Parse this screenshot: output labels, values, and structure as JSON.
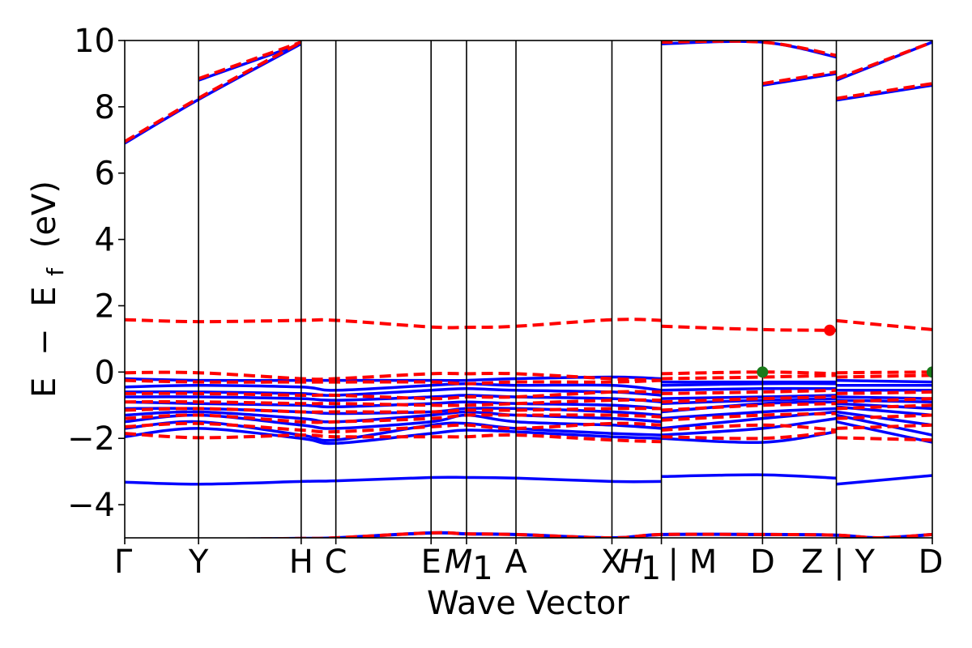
{
  "chart_data": {
    "type": "line",
    "title": "",
    "xlabel": "Wave Vector",
    "ylabel": "E − E_f (eV)",
    "ylabel_parts": {
      "a": "E",
      "minus": "−",
      "b": "E",
      "sub": "f",
      "unit": "(eV)"
    },
    "ylim": [
      -5,
      10
    ],
    "yticks": [
      -4,
      -2,
      0,
      2,
      4,
      6,
      8,
      10
    ],
    "ytick_labels": [
      "−4",
      "−2",
      "0",
      "2",
      "4",
      "6",
      "8",
      "10"
    ],
    "xlim": [
      0,
      10.94
    ],
    "kpoints": [
      {
        "label": "Γ",
        "x": 0.0
      },
      {
        "label": "Y",
        "x": 1.0
      },
      {
        "label": "H",
        "x": 2.39
      },
      {
        "label": "C",
        "x": 2.86
      },
      {
        "label": "E",
        "x": 4.15
      },
      {
        "label": "M",
        "sub": "1",
        "x": 4.63
      },
      {
        "label": "A",
        "x": 5.3
      },
      {
        "label": "X",
        "x": 6.6
      },
      {
        "label": "H",
        "sub": "1",
        "prefix": "",
        "x": 7.27,
        "display": "H₁ | M"
      },
      {
        "label": "D",
        "x": 8.64
      },
      {
        "label": "Z | Y",
        "x": 9.64
      },
      {
        "label": "D",
        "x": 10.94
      }
    ],
    "tick_label_text": [
      "Γ",
      "Y",
      "H",
      "C",
      "E",
      "M",
      "1",
      "A",
      "X",
      "H",
      "1",
      "| M",
      "D",
      "Z | Y",
      "D"
    ],
    "segments": [
      [
        0,
        6.6
      ],
      [
        6.6,
        7.27
      ],
      [
        7.27,
        9.64
      ],
      [
        9.64,
        10.94
      ]
    ],
    "series": [
      {
        "style": "solid",
        "color": "#0000ff",
        "bands": [
          [
            -3.32,
            -3.38,
            -3.3,
            -3.28,
            -3.18,
            -3.18,
            -3.2,
            -3.3,
            -3.3,
            -3.15,
            -3.1,
            -3.2,
            -3.38,
            -3.12
          ],
          [
            -1.95,
            -1.7,
            -2.0,
            -2.15,
            -1.85,
            -1.75,
            -1.8,
            -1.95,
            -2.0,
            -2.0,
            -2.12,
            -1.8,
            -1.5,
            -2.12
          ],
          [
            -1.7,
            -1.5,
            -1.9,
            -2.05,
            -1.6,
            -1.55,
            -1.7,
            -1.85,
            -1.9,
            -1.9,
            -1.7,
            -1.4,
            -1.3,
            -1.9
          ],
          [
            -1.5,
            -1.3,
            -1.6,
            -1.7,
            -1.5,
            -1.3,
            -1.5,
            -1.6,
            -1.7,
            -1.7,
            -1.4,
            -1.2,
            -1.2,
            -1.6
          ],
          [
            -1.3,
            -1.2,
            -1.4,
            -1.5,
            -1.3,
            -1.2,
            -1.3,
            -1.4,
            -1.5,
            -1.4,
            -1.2,
            -1.1,
            -1.05,
            -1.3
          ],
          [
            -1.1,
            -1.1,
            -1.2,
            -1.25,
            -1.2,
            -1.1,
            -1.1,
            -1.2,
            -1.3,
            -1.2,
            -0.95,
            -0.9,
            -0.95,
            -1.1
          ],
          [
            -0.9,
            -0.95,
            -1.0,
            -1.05,
            -0.95,
            -0.9,
            -0.95,
            -1.0,
            -1.1,
            -0.95,
            -0.85,
            -0.8,
            -0.85,
            -0.9
          ],
          [
            -0.75,
            -0.75,
            -0.8,
            -0.85,
            -0.75,
            -0.7,
            -0.75,
            -0.8,
            -0.9,
            -0.8,
            -0.75,
            -0.7,
            -0.75,
            -0.8
          ],
          [
            -0.6,
            -0.6,
            -0.65,
            -0.7,
            -0.55,
            -0.5,
            -0.55,
            -0.6,
            -0.7,
            -0.55,
            -0.5,
            -0.5,
            -0.55,
            -0.55
          ],
          [
            -0.45,
            -0.4,
            -0.45,
            -0.55,
            -0.4,
            -0.35,
            -0.4,
            -0.4,
            -0.55,
            -0.4,
            -0.35,
            -0.35,
            -0.4,
            -0.4
          ],
          [
            -0.2,
            -0.25,
            -0.25,
            -0.25,
            -0.25,
            -0.25,
            -0.2,
            -0.15,
            -0.2,
            -0.3,
            -0.3,
            -0.3,
            -0.25,
            -0.3
          ],
          [
            6.9,
            8.22,
            9.9,
            null,
            null,
            null,
            null,
            null,
            null,
            null,
            8.65,
            9.0,
            8.2,
            8.65
          ],
          [
            null,
            8.8,
            9.9,
            null,
            null,
            null,
            null,
            null,
            null,
            9.9,
            9.95,
            9.5,
            8.8,
            9.95
          ]
        ]
      },
      {
        "style": "dashed",
        "color": "#ff0000",
        "bands": [
          [
            -1.85,
            -1.98,
            -1.9,
            -1.95,
            -1.95,
            -1.95,
            -1.9,
            -2.05,
            -2.1,
            -1.95,
            -2.0,
            -1.8,
            -1.98,
            -2.05
          ],
          [
            -1.65,
            -1.55,
            -1.75,
            -1.8,
            -1.65,
            -1.6,
            -1.7,
            -1.55,
            -1.6,
            -1.75,
            -1.6,
            -1.75,
            -1.7,
            -1.6
          ],
          [
            -1.4,
            -1.3,
            -1.5,
            -1.5,
            -1.4,
            -1.3,
            -1.3,
            -1.3,
            -1.35,
            -1.45,
            -1.3,
            -1.25,
            -1.4,
            -1.3
          ],
          [
            -1.15,
            -1.1,
            -1.2,
            -1.2,
            -1.2,
            -1.15,
            -1.15,
            -1.1,
            -1.1,
            -1.15,
            -1.0,
            -0.95,
            -1.1,
            -1.0
          ],
          [
            -0.9,
            -0.9,
            -0.95,
            -0.95,
            -1.0,
            -1.0,
            -0.95,
            -0.85,
            -0.85,
            -0.9,
            -0.8,
            -0.75,
            -0.9,
            -0.8
          ],
          [
            -0.65,
            -0.65,
            -0.7,
            -0.7,
            -0.8,
            -0.75,
            -0.75,
            -0.6,
            -0.6,
            -0.65,
            -0.6,
            -0.55,
            -0.65,
            -0.6
          ],
          [
            -0.25,
            -0.3,
            -0.3,
            -0.3,
            -0.3,
            -0.35,
            -0.3,
            -0.3,
            -0.25,
            -0.2,
            -0.15,
            -0.1,
            -0.15,
            -0.1
          ],
          [
            -0.02,
            -0.02,
            -0.2,
            -0.2,
            -0.05,
            -0.05,
            -0.05,
            -0.2,
            -0.25,
            -0.05,
            0.0,
            -0.05,
            -0.02,
            0.0
          ],
          [
            1.58,
            1.52,
            1.56,
            1.56,
            1.36,
            1.35,
            1.38,
            1.58,
            1.56,
            1.38,
            1.28,
            1.26,
            1.55,
            1.28
          ],
          [
            6.95,
            8.26,
            9.95,
            null,
            null,
            null,
            null,
            null,
            null,
            null,
            8.7,
            9.05,
            8.25,
            8.7
          ],
          [
            null,
            8.85,
            9.95,
            null,
            null,
            null,
            null,
            null,
            null,
            9.95,
            9.95,
            9.55,
            8.85,
            9.95
          ]
        ]
      }
    ],
    "band_x": [
      0.0,
      1.0,
      2.39,
      2.86,
      4.15,
      4.63,
      5.3,
      6.6,
      7.27,
      7.27,
      8.64,
      9.64,
      9.64,
      10.94
    ],
    "markers": [
      {
        "x": 8.64,
        "y": 0.0,
        "color": "#1a7a1a"
      },
      {
        "x": 9.55,
        "y": 1.26,
        "color": "#ff0000"
      },
      {
        "x": 10.94,
        "y": 0.0,
        "color": "#1a7a1a"
      }
    ],
    "lower_bands_note": "",
    "grid": false,
    "legend": "none"
  }
}
